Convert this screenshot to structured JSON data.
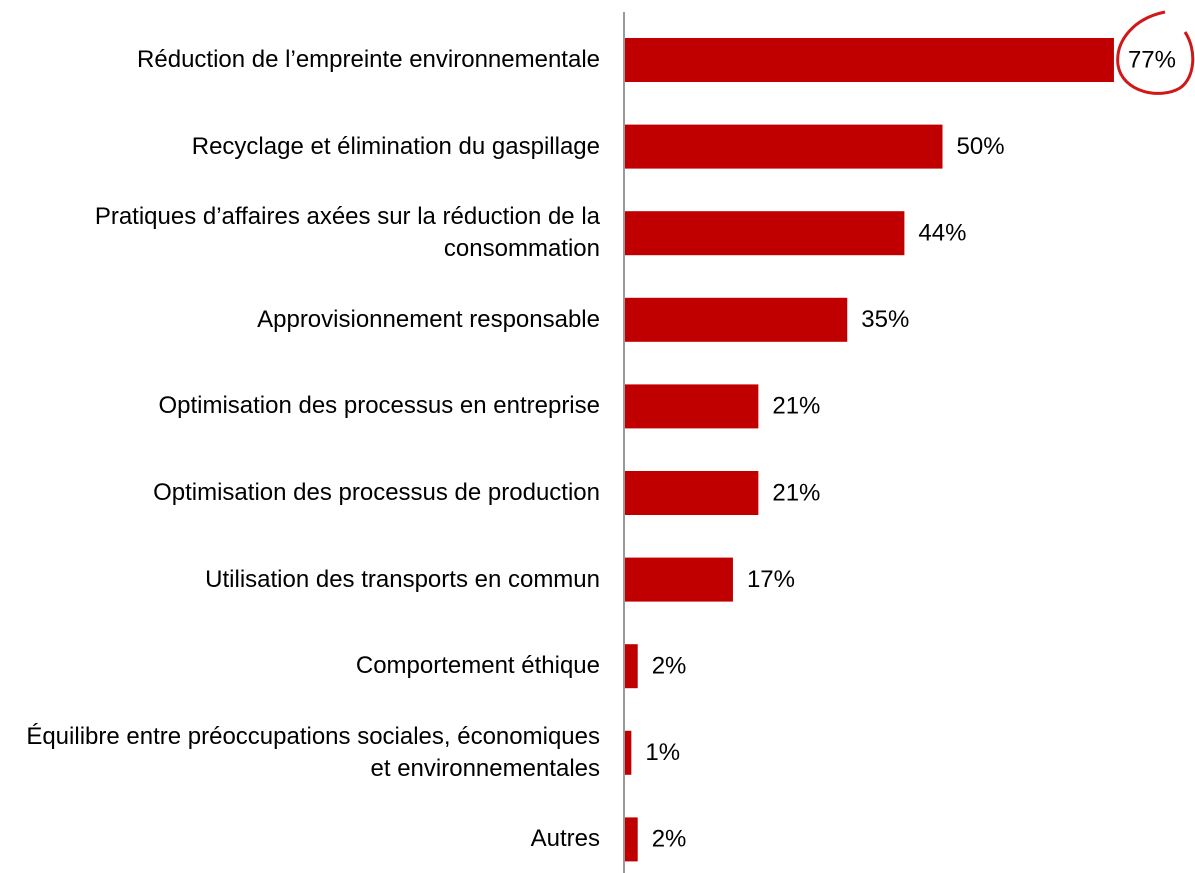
{
  "chart_data": {
    "type": "bar",
    "orientation": "horizontal",
    "categories": [
      "Réduction de l’empreinte environnementale",
      "Recyclage et élimination du gaspillage",
      "Pratiques d’affaires axées sur la réduction de la consommation",
      "Approvisionnement responsable",
      "Optimisation des processus en entreprise",
      "Optimisation des processus de production",
      "Utilisation des transports en commun",
      "Comportement éthique",
      "Équilibre entre préoccupations sociales, économiques et environnementales",
      "Autres"
    ],
    "values": [
      77,
      50,
      44,
      35,
      21,
      21,
      17,
      2,
      1,
      2
    ],
    "value_labels": [
      "77%",
      "50%",
      "44%",
      "35%",
      "21%",
      "21%",
      "17%",
      "2%",
      "1%",
      "2%"
    ],
    "color": "#c00000"
  }
}
